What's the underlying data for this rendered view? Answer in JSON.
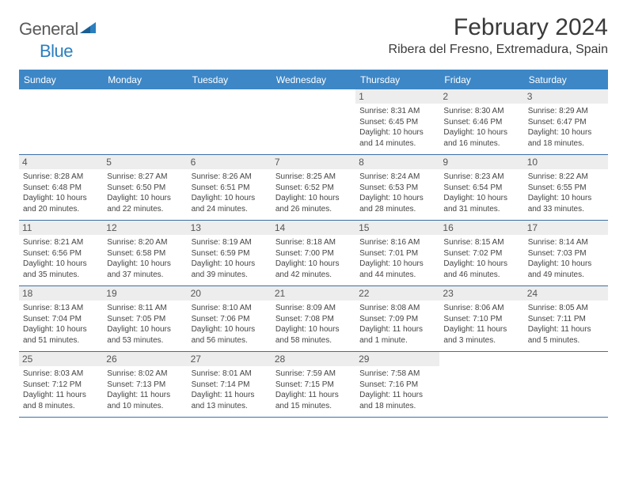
{
  "logo": {
    "text1": "General",
    "text2": "Blue"
  },
  "title": "February 2024",
  "location": "Ribera del Fresno, Extremadura, Spain",
  "day_header_bg": "#3d87c7",
  "day_header_fg": "#ffffff",
  "divider_color": "#3d6fa5",
  "daynum_bg": "#ededed",
  "daynames": [
    "Sunday",
    "Monday",
    "Tuesday",
    "Wednesday",
    "Thursday",
    "Friday",
    "Saturday"
  ],
  "weeks": [
    [
      {
        "n": "",
        "sr": "",
        "ss": "",
        "dl1": "",
        "dl2": ""
      },
      {
        "n": "",
        "sr": "",
        "ss": "",
        "dl1": "",
        "dl2": ""
      },
      {
        "n": "",
        "sr": "",
        "ss": "",
        "dl1": "",
        "dl2": ""
      },
      {
        "n": "",
        "sr": "",
        "ss": "",
        "dl1": "",
        "dl2": ""
      },
      {
        "n": "1",
        "sr": "Sunrise: 8:31 AM",
        "ss": "Sunset: 6:45 PM",
        "dl1": "Daylight: 10 hours",
        "dl2": "and 14 minutes."
      },
      {
        "n": "2",
        "sr": "Sunrise: 8:30 AM",
        "ss": "Sunset: 6:46 PM",
        "dl1": "Daylight: 10 hours",
        "dl2": "and 16 minutes."
      },
      {
        "n": "3",
        "sr": "Sunrise: 8:29 AM",
        "ss": "Sunset: 6:47 PM",
        "dl1": "Daylight: 10 hours",
        "dl2": "and 18 minutes."
      }
    ],
    [
      {
        "n": "4",
        "sr": "Sunrise: 8:28 AM",
        "ss": "Sunset: 6:48 PM",
        "dl1": "Daylight: 10 hours",
        "dl2": "and 20 minutes."
      },
      {
        "n": "5",
        "sr": "Sunrise: 8:27 AM",
        "ss": "Sunset: 6:50 PM",
        "dl1": "Daylight: 10 hours",
        "dl2": "and 22 minutes."
      },
      {
        "n": "6",
        "sr": "Sunrise: 8:26 AM",
        "ss": "Sunset: 6:51 PM",
        "dl1": "Daylight: 10 hours",
        "dl2": "and 24 minutes."
      },
      {
        "n": "7",
        "sr": "Sunrise: 8:25 AM",
        "ss": "Sunset: 6:52 PM",
        "dl1": "Daylight: 10 hours",
        "dl2": "and 26 minutes."
      },
      {
        "n": "8",
        "sr": "Sunrise: 8:24 AM",
        "ss": "Sunset: 6:53 PM",
        "dl1": "Daylight: 10 hours",
        "dl2": "and 28 minutes."
      },
      {
        "n": "9",
        "sr": "Sunrise: 8:23 AM",
        "ss": "Sunset: 6:54 PM",
        "dl1": "Daylight: 10 hours",
        "dl2": "and 31 minutes."
      },
      {
        "n": "10",
        "sr": "Sunrise: 8:22 AM",
        "ss": "Sunset: 6:55 PM",
        "dl1": "Daylight: 10 hours",
        "dl2": "and 33 minutes."
      }
    ],
    [
      {
        "n": "11",
        "sr": "Sunrise: 8:21 AM",
        "ss": "Sunset: 6:56 PM",
        "dl1": "Daylight: 10 hours",
        "dl2": "and 35 minutes."
      },
      {
        "n": "12",
        "sr": "Sunrise: 8:20 AM",
        "ss": "Sunset: 6:58 PM",
        "dl1": "Daylight: 10 hours",
        "dl2": "and 37 minutes."
      },
      {
        "n": "13",
        "sr": "Sunrise: 8:19 AM",
        "ss": "Sunset: 6:59 PM",
        "dl1": "Daylight: 10 hours",
        "dl2": "and 39 minutes."
      },
      {
        "n": "14",
        "sr": "Sunrise: 8:18 AM",
        "ss": "Sunset: 7:00 PM",
        "dl1": "Daylight: 10 hours",
        "dl2": "and 42 minutes."
      },
      {
        "n": "15",
        "sr": "Sunrise: 8:16 AM",
        "ss": "Sunset: 7:01 PM",
        "dl1": "Daylight: 10 hours",
        "dl2": "and 44 minutes."
      },
      {
        "n": "16",
        "sr": "Sunrise: 8:15 AM",
        "ss": "Sunset: 7:02 PM",
        "dl1": "Daylight: 10 hours",
        "dl2": "and 46 minutes."
      },
      {
        "n": "17",
        "sr": "Sunrise: 8:14 AM",
        "ss": "Sunset: 7:03 PM",
        "dl1": "Daylight: 10 hours",
        "dl2": "and 49 minutes."
      }
    ],
    [
      {
        "n": "18",
        "sr": "Sunrise: 8:13 AM",
        "ss": "Sunset: 7:04 PM",
        "dl1": "Daylight: 10 hours",
        "dl2": "and 51 minutes."
      },
      {
        "n": "19",
        "sr": "Sunrise: 8:11 AM",
        "ss": "Sunset: 7:05 PM",
        "dl1": "Daylight: 10 hours",
        "dl2": "and 53 minutes."
      },
      {
        "n": "20",
        "sr": "Sunrise: 8:10 AM",
        "ss": "Sunset: 7:06 PM",
        "dl1": "Daylight: 10 hours",
        "dl2": "and 56 minutes."
      },
      {
        "n": "21",
        "sr": "Sunrise: 8:09 AM",
        "ss": "Sunset: 7:08 PM",
        "dl1": "Daylight: 10 hours",
        "dl2": "and 58 minutes."
      },
      {
        "n": "22",
        "sr": "Sunrise: 8:08 AM",
        "ss": "Sunset: 7:09 PM",
        "dl1": "Daylight: 11 hours",
        "dl2": "and 1 minute."
      },
      {
        "n": "23",
        "sr": "Sunrise: 8:06 AM",
        "ss": "Sunset: 7:10 PM",
        "dl1": "Daylight: 11 hours",
        "dl2": "and 3 minutes."
      },
      {
        "n": "24",
        "sr": "Sunrise: 8:05 AM",
        "ss": "Sunset: 7:11 PM",
        "dl1": "Daylight: 11 hours",
        "dl2": "and 5 minutes."
      }
    ],
    [
      {
        "n": "25",
        "sr": "Sunrise: 8:03 AM",
        "ss": "Sunset: 7:12 PM",
        "dl1": "Daylight: 11 hours",
        "dl2": "and 8 minutes."
      },
      {
        "n": "26",
        "sr": "Sunrise: 8:02 AM",
        "ss": "Sunset: 7:13 PM",
        "dl1": "Daylight: 11 hours",
        "dl2": "and 10 minutes."
      },
      {
        "n": "27",
        "sr": "Sunrise: 8:01 AM",
        "ss": "Sunset: 7:14 PM",
        "dl1": "Daylight: 11 hours",
        "dl2": "and 13 minutes."
      },
      {
        "n": "28",
        "sr": "Sunrise: 7:59 AM",
        "ss": "Sunset: 7:15 PM",
        "dl1": "Daylight: 11 hours",
        "dl2": "and 15 minutes."
      },
      {
        "n": "29",
        "sr": "Sunrise: 7:58 AM",
        "ss": "Sunset: 7:16 PM",
        "dl1": "Daylight: 11 hours",
        "dl2": "and 18 minutes."
      },
      {
        "n": "",
        "sr": "",
        "ss": "",
        "dl1": "",
        "dl2": ""
      },
      {
        "n": "",
        "sr": "",
        "ss": "",
        "dl1": "",
        "dl2": ""
      }
    ]
  ]
}
